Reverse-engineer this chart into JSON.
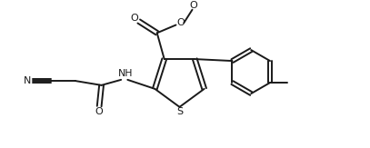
{
  "bg_color": "#ffffff",
  "line_color": "#1a1a1a",
  "line_width": 1.4,
  "fig_width": 4.07,
  "fig_height": 1.63,
  "dpi": 100,
  "xlim": [
    0,
    10
  ],
  "ylim": [
    0,
    4
  ]
}
